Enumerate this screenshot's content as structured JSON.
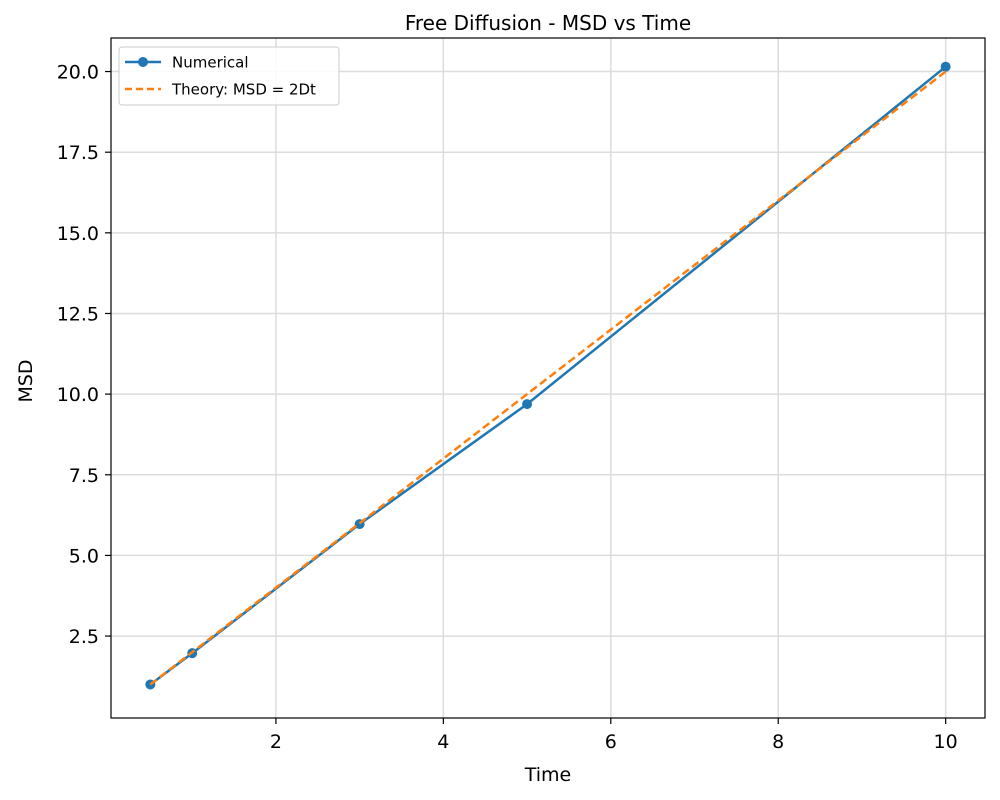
{
  "chart_data": {
    "type": "line",
    "title": "Free Diffusion - MSD vs Time",
    "xlabel": "Time",
    "ylabel": "MSD",
    "xlim": [
      0.03,
      10.47
    ],
    "ylim": [
      -0.04,
      21.04
    ],
    "x_ticks": [
      2,
      4,
      6,
      8,
      10
    ],
    "y_ticks": [
      2.5,
      5.0,
      7.5,
      10.0,
      12.5,
      15.0,
      17.5,
      20.0
    ],
    "x_tick_labels": [
      "2",
      "4",
      "6",
      "8",
      "10"
    ],
    "y_tick_labels": [
      "2.5",
      "5.0",
      "7.5",
      "10.0",
      "12.5",
      "15.0",
      "17.5",
      "20.0"
    ],
    "grid": true,
    "legend_position": "top-left",
    "series": [
      {
        "name": "Numerical",
        "color": "#1f77b4",
        "style": "solid",
        "marker": "circle",
        "x": [
          0.5,
          1.0,
          3.0,
          5.0,
          10.0
        ],
        "y": [
          1.0,
          1.97,
          5.97,
          9.69,
          20.15
        ]
      },
      {
        "name": "Theory: MSD = 2Dt",
        "color": "#ff7f0e",
        "style": "dashed",
        "marker": "none",
        "x": [
          0.5,
          1.0,
          3.0,
          5.0,
          10.0
        ],
        "y": [
          1.0,
          2.0,
          6.0,
          10.0,
          20.0
        ]
      }
    ]
  }
}
